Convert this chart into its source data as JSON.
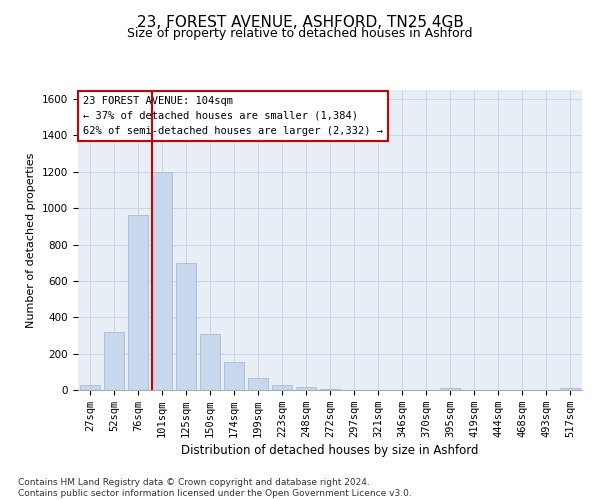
{
  "title1": "23, FOREST AVENUE, ASHFORD, TN25 4GB",
  "title2": "Size of property relative to detached houses in Ashford",
  "xlabel": "Distribution of detached houses by size in Ashford",
  "ylabel": "Number of detached properties",
  "footnote": "Contains HM Land Registry data © Crown copyright and database right 2024.\nContains public sector information licensed under the Open Government Licence v3.0.",
  "annotation_title": "23 FOREST AVENUE: 104sqm",
  "annotation_line1": "← 37% of detached houses are smaller (1,384)",
  "annotation_line2": "62% of semi-detached houses are larger (2,332) →",
  "bar_color": "#c8d8ec",
  "bar_edge_color": "#9ab8d0",
  "vline_color": "#cc0000",
  "grid_color": "#ccd4e2",
  "bg_color": "#e8eef6",
  "fig_bg_color": "#ffffff",
  "categories": [
    "27sqm",
    "52sqm",
    "76sqm",
    "101sqm",
    "125sqm",
    "150sqm",
    "174sqm",
    "199sqm",
    "223sqm",
    "248sqm",
    "272sqm",
    "297sqm",
    "321sqm",
    "346sqm",
    "370sqm",
    "395sqm",
    "419sqm",
    "444sqm",
    "468sqm",
    "493sqm",
    "517sqm"
  ],
  "values": [
    30,
    320,
    960,
    1200,
    700,
    310,
    155,
    65,
    28,
    15,
    5,
    2,
    1,
    0,
    0,
    10,
    0,
    0,
    0,
    0,
    10
  ],
  "vline_x_index": 3,
  "ylim": [
    0,
    1650
  ],
  "yticks": [
    0,
    200,
    400,
    600,
    800,
    1000,
    1200,
    1400,
    1600
  ],
  "title1_fontsize": 11,
  "title2_fontsize": 9,
  "xlabel_fontsize": 8.5,
  "ylabel_fontsize": 8,
  "tick_fontsize": 7.5,
  "annot_fontsize": 7.5,
  "footnote_fontsize": 6.5
}
